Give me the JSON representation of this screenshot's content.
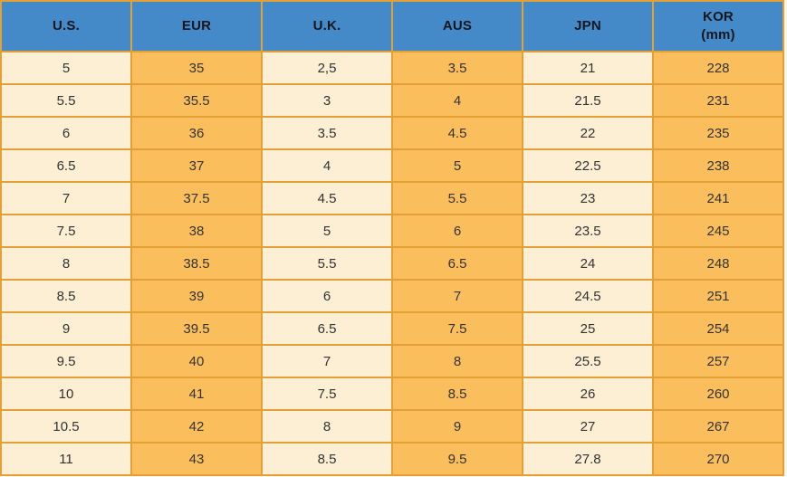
{
  "chart_data": {
    "type": "table",
    "columns": [
      {
        "label": "U.S.",
        "sublabel": ""
      },
      {
        "label": "EUR",
        "sublabel": ""
      },
      {
        "label": "U.K.",
        "sublabel": ""
      },
      {
        "label": "AUS",
        "sublabel": ""
      },
      {
        "label": "JPN",
        "sublabel": ""
      },
      {
        "label": "KOR",
        "sublabel": "(mm)"
      }
    ],
    "rows": [
      [
        "5",
        "35",
        "2,5",
        "3.5",
        "21",
        "228"
      ],
      [
        "5.5",
        "35.5",
        "3",
        "4",
        "21.5",
        "231"
      ],
      [
        "6",
        "36",
        "3.5",
        "4.5",
        "22",
        "235"
      ],
      [
        "6.5",
        "37",
        "4",
        "5",
        "22.5",
        "238"
      ],
      [
        "7",
        "37.5",
        "4.5",
        "5.5",
        "23",
        "241"
      ],
      [
        "7.5",
        "38",
        "5",
        "6",
        "23.5",
        "245"
      ],
      [
        "8",
        "38.5",
        "5.5",
        "6.5",
        "24",
        "248"
      ],
      [
        "8.5",
        "39",
        "6",
        "7",
        "24.5",
        "251"
      ],
      [
        "9",
        "39.5",
        "6.5",
        "7.5",
        "25",
        "254"
      ],
      [
        "9.5",
        "40",
        "7",
        "8",
        "25.5",
        "257"
      ],
      [
        "10",
        "41",
        "7.5",
        "8.5",
        "26",
        "260"
      ],
      [
        "10.5",
        "42",
        "8",
        "9",
        "27",
        "267"
      ],
      [
        "11",
        "43",
        "8.5",
        "9.5",
        "27.8",
        "270"
      ]
    ],
    "column_styles": [
      "cream",
      "orange",
      "cream",
      "orange",
      "cream",
      "orange"
    ],
    "layout": {
      "grid": true,
      "header_position": "top"
    }
  },
  "colors": {
    "header_bg": "#4489C8",
    "column_orange": "#FBBE5D",
    "column_cream": "#FCEFD3",
    "gridline": "#E2A037",
    "header_text": "#16161F",
    "cell_text": "#333333"
  }
}
